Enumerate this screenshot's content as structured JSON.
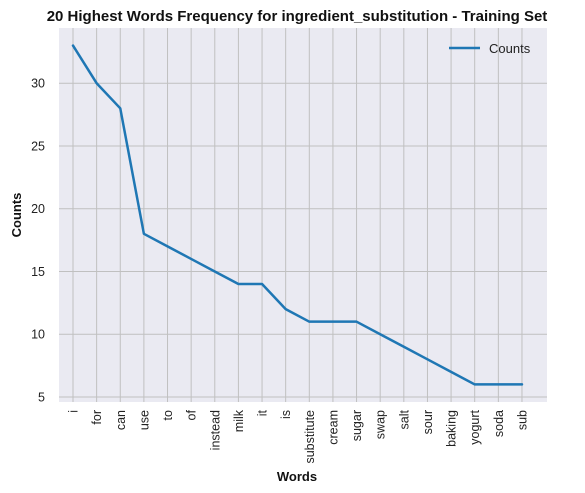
{
  "chart_data": {
    "type": "line",
    "title": "20 Highest Words Frequency for ingredient_substitution - Training Set",
    "xlabel": "Words",
    "ylabel": "Counts",
    "categories": [
      "i",
      "for",
      "can",
      "use",
      "to",
      "of",
      "instead",
      "milk",
      "it",
      "is",
      "substitute",
      "cream",
      "sugar",
      "swap",
      "salt",
      "sour",
      "baking",
      "yogurt",
      "soda",
      "sub"
    ],
    "series": [
      {
        "name": "Counts",
        "values": [
          33,
          30,
          28,
          18,
          17,
          16,
          15,
          14,
          14,
          12,
          11,
          11,
          11,
          10,
          9,
          8,
          7,
          6,
          6,
          6
        ],
        "color": "#1f77b4"
      }
    ],
    "ylim": [
      4.6,
      34.4
    ],
    "yticks": [
      5,
      10,
      15,
      20,
      25,
      30
    ],
    "grid": true,
    "legend_position": "top-right",
    "background": "#eaeaf2",
    "grid_color": "#c0c0c0"
  }
}
